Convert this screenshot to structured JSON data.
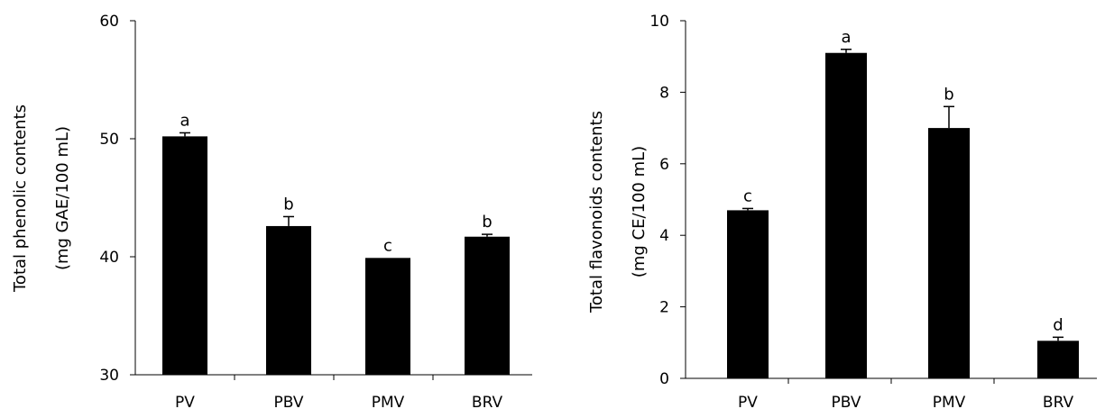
{
  "chart_data": [
    {
      "type": "bar",
      "categories": [
        "PV",
        "PBV",
        "PMV",
        "BRV"
      ],
      "values": [
        50.2,
        42.6,
        39.9,
        41.7
      ],
      "errors": [
        0.3,
        0.8,
        0.0,
        0.2
      ],
      "significance_letters": [
        "a",
        "b",
        "c",
        "b"
      ],
      "ylabel_line1": "Total phenolic contents",
      "ylabel_line2": "(mg GAE/100 mL)",
      "ylim": [
        30,
        60
      ],
      "yticks": [
        30,
        40,
        50,
        60
      ],
      "color": "#000000",
      "grid": false
    },
    {
      "type": "bar",
      "categories": [
        "PV",
        "PBV",
        "PMV",
        "BRV"
      ],
      "values": [
        4.7,
        9.1,
        7.0,
        1.05
      ],
      "errors": [
        0.05,
        0.1,
        0.6,
        0.1
      ],
      "significance_letters": [
        "c",
        "a",
        "b",
        "d"
      ],
      "ylabel_line1": "Total flavonoids contents",
      "ylabel_line2": "(mg CE/100 mL)",
      "ylim": [
        0,
        10
      ],
      "yticks": [
        0,
        2,
        4,
        6,
        8,
        10
      ],
      "color": "#000000",
      "grid": false
    }
  ]
}
